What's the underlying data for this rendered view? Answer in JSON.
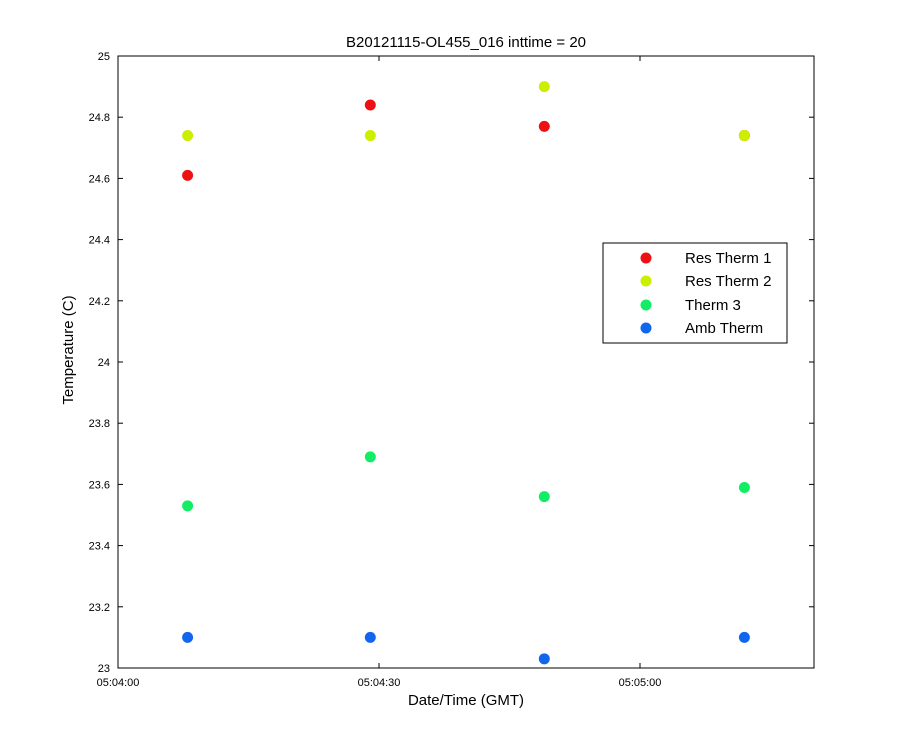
{
  "chart_data": {
    "type": "scatter",
    "title": "B20121115-OL455_016 inttime = 20",
    "xlabel": "Date/Time (GMT)",
    "ylabel": "Temperature (C)",
    "xlim": [
      "05:04:00",
      "05:05:20"
    ],
    "ylim": [
      23,
      25
    ],
    "x_ticks": [
      "05:04:00",
      "05:04:30",
      "05:05:00"
    ],
    "y_ticks": [
      "23",
      "23.2",
      "23.4",
      "23.6",
      "23.8",
      "24",
      "24.2",
      "24.4",
      "24.6",
      "24.8",
      "25"
    ],
    "grid": false,
    "legend_position": "right",
    "x": [
      "05:04:08",
      "05:04:29",
      "05:04:49",
      "05:05:12"
    ],
    "series": [
      {
        "name": "Res Therm 1",
        "color": "#ee1111",
        "values": [
          24.61,
          24.84,
          24.77,
          24.74
        ]
      },
      {
        "name": "Res Therm 2",
        "color": "#ccee00",
        "values": [
          24.74,
          24.74,
          24.9,
          24.74
        ]
      },
      {
        "name": "Therm 3",
        "color": "#11ee66",
        "values": [
          23.53,
          23.69,
          23.56,
          23.59
        ]
      },
      {
        "name": "Amb Therm",
        "color": "#1166ee",
        "values": [
          23.1,
          23.1,
          23.03,
          23.1
        ]
      }
    ]
  }
}
